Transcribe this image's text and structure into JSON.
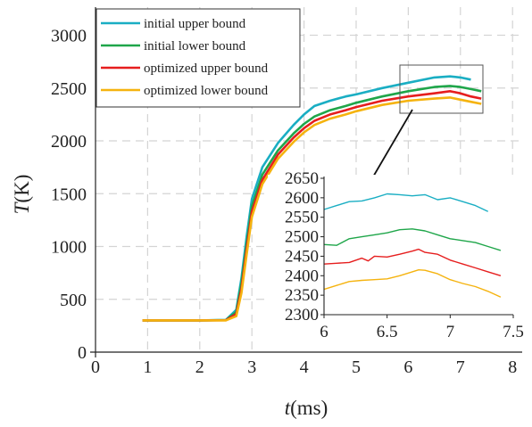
{
  "chart_data": [
    {
      "type": "line",
      "xlabel_var": "t",
      "xlabel_unit": "(ms)",
      "ylabel_var": "T",
      "ylabel_unit": "(K)",
      "xlim": [
        0,
        8
      ],
      "ylim": [
        0,
        3200
      ],
      "xticks": [
        "0",
        "1",
        "2",
        "3",
        "4",
        "5",
        "6",
        "7",
        "8"
      ],
      "yticks": [
        "0",
        "500",
        "1000",
        "1500",
        "2000",
        "2500",
        "3000"
      ],
      "grid": true,
      "legend_position": "top-left",
      "series": [
        {
          "name": "initial upper bound",
          "color": "#1aaec3",
          "points": [
            [
              0.9,
              300
            ],
            [
              2.0,
              300
            ],
            [
              2.5,
              305
            ],
            [
              2.7,
              400
            ],
            [
              2.8,
              700
            ],
            [
              2.9,
              1100
            ],
            [
              3.0,
              1450
            ],
            [
              3.2,
              1750
            ],
            [
              3.5,
              1980
            ],
            [
              3.8,
              2150
            ],
            [
              4.0,
              2250
            ],
            [
              4.2,
              2330
            ],
            [
              4.5,
              2380
            ],
            [
              4.8,
              2420
            ],
            [
              5.0,
              2440
            ],
            [
              5.5,
              2500
            ],
            [
              6.0,
              2550
            ],
            [
              6.5,
              2600
            ],
            [
              6.8,
              2610
            ],
            [
              7.0,
              2600
            ],
            [
              7.2,
              2580
            ]
          ]
        },
        {
          "name": "initial lower bound",
          "color": "#1fa64a",
          "points": [
            [
              0.9,
              300
            ],
            [
              2.0,
              300
            ],
            [
              2.5,
              303
            ],
            [
              2.7,
              380
            ],
            [
              2.8,
              650
            ],
            [
              2.9,
              1030
            ],
            [
              3.0,
              1380
            ],
            [
              3.2,
              1680
            ],
            [
              3.5,
              1910
            ],
            [
              3.8,
              2070
            ],
            [
              4.0,
              2160
            ],
            [
              4.2,
              2230
            ],
            [
              4.5,
              2290
            ],
            [
              4.8,
              2330
            ],
            [
              5.0,
              2360
            ],
            [
              5.5,
              2420
            ],
            [
              6.0,
              2470
            ],
            [
              6.5,
              2510
            ],
            [
              6.8,
              2520
            ],
            [
              7.0,
              2510
            ],
            [
              7.2,
              2490
            ],
            [
              7.4,
              2470
            ]
          ]
        },
        {
          "name": "optimized upper bound",
          "color": "#e61e1e",
          "points": [
            [
              0.9,
              300
            ],
            [
              2.0,
              300
            ],
            [
              2.5,
              302
            ],
            [
              2.7,
              360
            ],
            [
              2.8,
              600
            ],
            [
              2.9,
              980
            ],
            [
              3.0,
              1330
            ],
            [
              3.2,
              1630
            ],
            [
              3.5,
              1870
            ],
            [
              3.8,
              2030
            ],
            [
              4.0,
              2120
            ],
            [
              4.2,
              2190
            ],
            [
              4.5,
              2250
            ],
            [
              4.8,
              2290
            ],
            [
              5.0,
              2320
            ],
            [
              5.5,
              2380
            ],
            [
              6.0,
              2420
            ],
            [
              6.5,
              2450
            ],
            [
              6.8,
              2470
            ],
            [
              7.0,
              2450
            ],
            [
              7.2,
              2420
            ],
            [
              7.4,
              2400
            ]
          ]
        },
        {
          "name": "optimized lower bound",
          "color": "#f5b30f",
          "points": [
            [
              0.9,
              300
            ],
            [
              2.0,
              300
            ],
            [
              2.5,
              300
            ],
            [
              2.7,
              340
            ],
            [
              2.8,
              560
            ],
            [
              2.9,
              930
            ],
            [
              3.0,
              1280
            ],
            [
              3.2,
              1590
            ],
            [
              3.5,
              1830
            ],
            [
              3.8,
              1990
            ],
            [
              4.0,
              2080
            ],
            [
              4.2,
              2150
            ],
            [
              4.5,
              2210
            ],
            [
              4.8,
              2250
            ],
            [
              5.0,
              2280
            ],
            [
              5.5,
              2340
            ],
            [
              6.0,
              2380
            ],
            [
              6.5,
              2400
            ],
            [
              6.8,
              2410
            ],
            [
              7.0,
              2390
            ],
            [
              7.2,
              2370
            ],
            [
              7.4,
              2350
            ]
          ]
        }
      ]
    },
    {
      "type": "line",
      "role": "inset-zoom",
      "xlim": [
        6,
        7.5
      ],
      "ylim": [
        2300,
        2650
      ],
      "xticks": [
        "6",
        "6.5",
        "7",
        "7.5"
      ],
      "yticks": [
        "2300",
        "2350",
        "2400",
        "2450",
        "2500",
        "2550",
        "2600",
        "2650"
      ],
      "grid": false,
      "series": [
        {
          "name": "initial upper bound",
          "color": "#1aaec3",
          "points": [
            [
              6.0,
              2570
            ],
            [
              6.1,
              2580
            ],
            [
              6.2,
              2590
            ],
            [
              6.3,
              2592
            ],
            [
              6.4,
              2600
            ],
            [
              6.5,
              2610
            ],
            [
              6.6,
              2608
            ],
            [
              6.7,
              2605
            ],
            [
              6.8,
              2608
            ],
            [
              6.9,
              2595
            ],
            [
              7.0,
              2600
            ],
            [
              7.1,
              2590
            ],
            [
              7.2,
              2580
            ],
            [
              7.3,
              2565
            ]
          ]
        },
        {
          "name": "initial lower bound",
          "color": "#1fa64a",
          "points": [
            [
              6.0,
              2480
            ],
            [
              6.1,
              2478
            ],
            [
              6.2,
              2495
            ],
            [
              6.3,
              2500
            ],
            [
              6.4,
              2505
            ],
            [
              6.5,
              2510
            ],
            [
              6.6,
              2518
            ],
            [
              6.7,
              2520
            ],
            [
              6.8,
              2515
            ],
            [
              6.9,
              2505
            ],
            [
              7.0,
              2495
            ],
            [
              7.1,
              2490
            ],
            [
              7.2,
              2485
            ],
            [
              7.3,
              2475
            ],
            [
              7.4,
              2465
            ]
          ]
        },
        {
          "name": "optimized upper bound",
          "color": "#e61e1e",
          "points": [
            [
              6.0,
              2430
            ],
            [
              6.1,
              2432
            ],
            [
              6.2,
              2434
            ],
            [
              6.3,
              2445
            ],
            [
              6.35,
              2438
            ],
            [
              6.4,
              2450
            ],
            [
              6.5,
              2448
            ],
            [
              6.6,
              2455
            ],
            [
              6.7,
              2463
            ],
            [
              6.75,
              2468
            ],
            [
              6.8,
              2460
            ],
            [
              6.9,
              2455
            ],
            [
              7.0,
              2440
            ],
            [
              7.1,
              2430
            ],
            [
              7.2,
              2420
            ],
            [
              7.3,
              2410
            ],
            [
              7.4,
              2400
            ]
          ]
        },
        {
          "name": "optimized lower bound",
          "color": "#f5b30f",
          "points": [
            [
              6.0,
              2365
            ],
            [
              6.1,
              2375
            ],
            [
              6.2,
              2385
            ],
            [
              6.3,
              2388
            ],
            [
              6.4,
              2390
            ],
            [
              6.5,
              2392
            ],
            [
              6.6,
              2400
            ],
            [
              6.7,
              2410
            ],
            [
              6.75,
              2415
            ],
            [
              6.8,
              2414
            ],
            [
              6.9,
              2405
            ],
            [
              7.0,
              2390
            ],
            [
              7.1,
              2380
            ],
            [
              7.2,
              2372
            ],
            [
              7.3,
              2360
            ],
            [
              7.4,
              2345
            ]
          ]
        }
      ]
    }
  ]
}
